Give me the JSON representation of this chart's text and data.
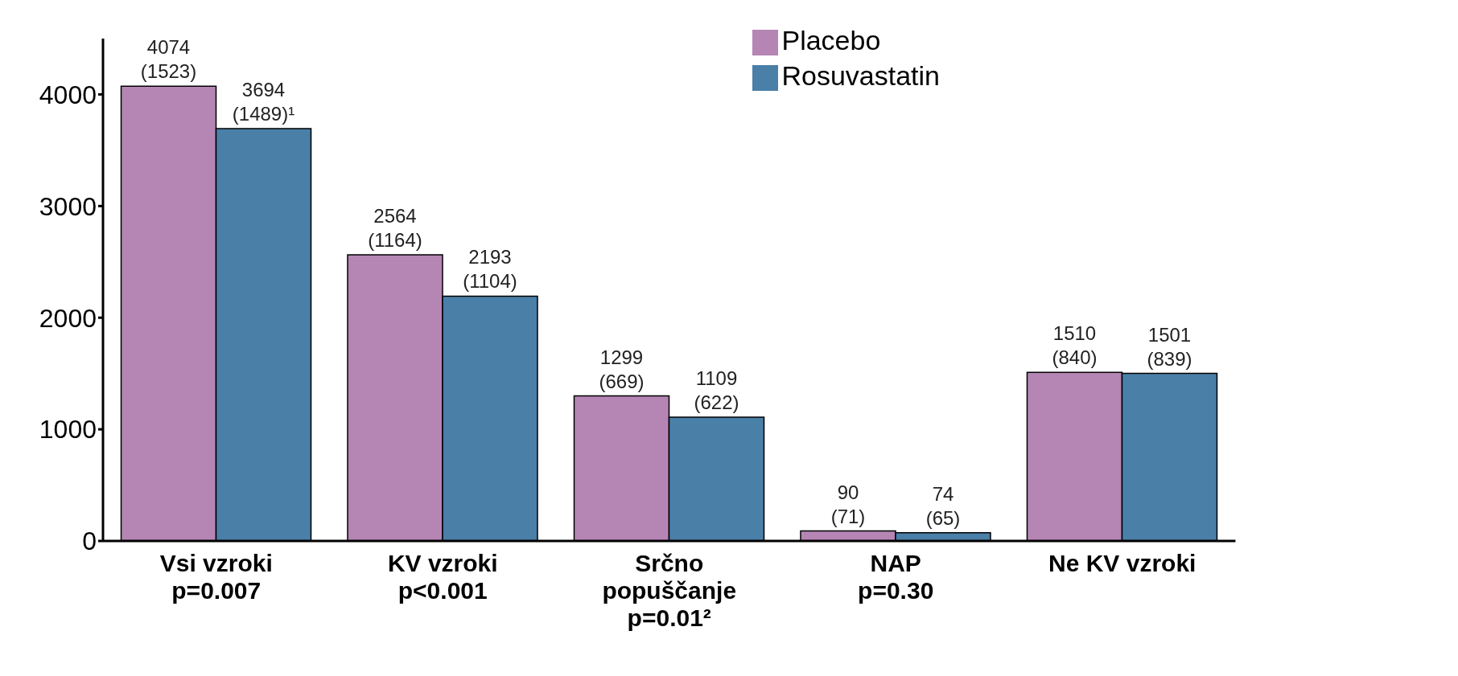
{
  "chart_data": {
    "type": "bar",
    "categories": [
      "Vsi vzroki\np=0.007",
      "KV vzroki\np<0.001",
      "Srčno\npopuščanje\np=0.01²",
      "NAP\np=0.30",
      "Ne KV vzroki"
    ],
    "series": [
      {
        "name": "Placebo",
        "color": "#b585b4",
        "values": [
          4074,
          2564,
          1299,
          90,
          1510
        ],
        "value_labels": [
          "4074\n(1523)",
          "2564\n(1164)",
          "1299\n(669)",
          "90\n(71)",
          "1510\n(840)"
        ]
      },
      {
        "name": "Rosuvastatin",
        "color": "#4a7fa8",
        "values": [
          3694,
          2193,
          1109,
          74,
          1501
        ],
        "value_labels": [
          "3694\n(1489)¹",
          "2193\n(1104)",
          "1109\n(622)",
          "74\n(65)",
          "1501\n(839)"
        ]
      }
    ],
    "ylim": [
      0,
      4500
    ],
    "yticks": [
      0,
      1000,
      2000,
      3000,
      4000
    ],
    "grid": false,
    "legend": "top right"
  }
}
